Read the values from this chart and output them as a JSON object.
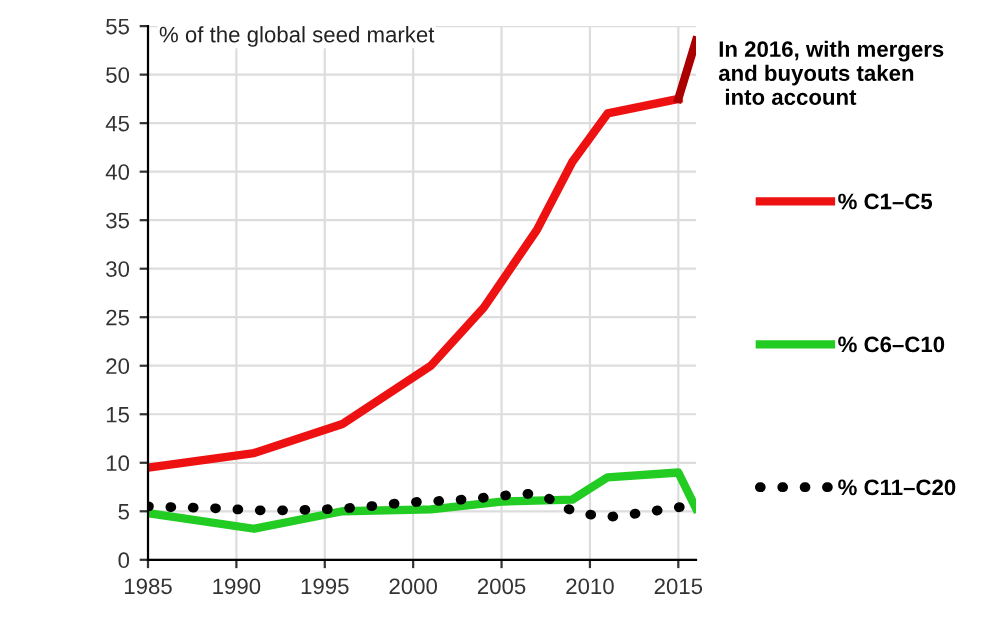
{
  "chart_data": {
    "type": "line",
    "ylabel": "% of the global seed market",
    "annotations": [
      {
        "text": "In 2016, with mergers\nand buyouts taken\n into account",
        "x": 2016,
        "y": 53.5
      }
    ],
    "series": [
      {
        "name": "% C1–C5",
        "color": "#ee1111",
        "x": [
          1985,
          1991,
          1996,
          2001,
          2004,
          2007,
          2009,
          2011,
          2015
        ],
        "values": [
          9.5,
          11,
          14,
          20,
          26,
          34,
          41,
          46,
          47.5
        ]
      },
      {
        "color": "#aa0000",
        "x": [
          2015,
          2016
        ],
        "values": [
          47.5,
          53.5
        ]
      },
      {
        "name": "% C6–C10",
        "color": "#22cc22",
        "x": [
          1985,
          1991,
          1996,
          2001,
          2005,
          2009,
          2011,
          2015,
          2016
        ],
        "values": [
          4.8,
          3.2,
          5,
          5.2,
          6,
          6.2,
          8.5,
          9,
          5.3
        ]
      },
      {
        "name": "% C11–C20",
        "color": "#000000",
        "line_style": "dotted",
        "x": [
          1985,
          1987,
          1989,
          1991,
          1993,
          1995,
          1997,
          1999,
          2000.5,
          2002,
          2003.5,
          2005,
          2006.5,
          2007.5,
          2008.5,
          2009.5,
          2011,
          2012,
          2013.5,
          2015,
          2016
        ],
        "values": [
          5.5,
          5.4,
          5.3,
          5.1,
          5.1,
          5.2,
          5.4,
          5.8,
          6,
          6.1,
          6.3,
          6.6,
          6.8,
          6.5,
          5.4,
          4.8,
          4.4,
          4.6,
          5,
          5.4,
          5.8
        ]
      }
    ],
    "xlim": [
      1985,
      2016
    ],
    "xticks": [
      1985,
      1990,
      1995,
      2000,
      2005,
      2010,
      2015
    ],
    "ylim": [
      0,
      55
    ],
    "yticks": [
      0,
      5,
      10,
      15,
      20,
      25,
      30,
      35,
      40,
      45,
      50,
      55
    ],
    "grid": true,
    "legend": "right",
    "line_style": "solid",
    "marker": "none"
  }
}
